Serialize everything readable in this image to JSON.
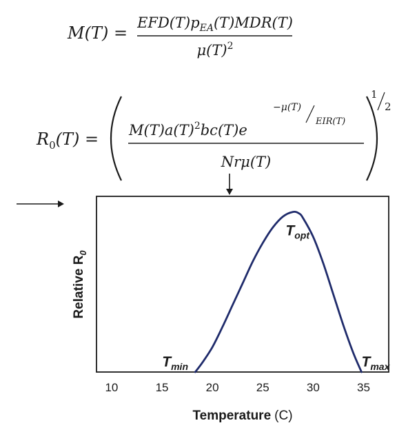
{
  "equation_m": {
    "lhs": "M(T) =",
    "numerator": "EFD(T)p_EA(T)MDR(T)",
    "denominator": "μ(T)²"
  },
  "equation_r0": {
    "lhs": "R₀(T) =",
    "numerator_main": "M(T)a(T)²bc(T)e",
    "exponent_num": "−μ(T)",
    "exponent_den": "EIR(T)",
    "denominator": "Nrμ(T)",
    "outer_exponent": "1/2"
  },
  "chart_data": {
    "type": "line",
    "xlabel": "Temperature",
    "xlabel_unit": "(C)",
    "ylabel": "Relative R0",
    "xticks": [
      10,
      15,
      20,
      25,
      30,
      35
    ],
    "xlim": [
      8.5,
      37.5
    ],
    "ylim": [
      0,
      1.13
    ],
    "grid": false,
    "series": [
      {
        "x": [
          18.3,
          19,
          20,
          21,
          22,
          23,
          24,
          25,
          26,
          27,
          28,
          28.6,
          29,
          30,
          31,
          32,
          33,
          34,
          34.8
        ],
        "y": [
          0.0,
          0.06,
          0.16,
          0.29,
          0.43,
          0.57,
          0.71,
          0.83,
          0.93,
          1.0,
          1.03,
          1.02,
          0.99,
          0.87,
          0.7,
          0.5,
          0.3,
          0.12,
          0.0
        ]
      }
    ],
    "annotations": [
      {
        "text": "T",
        "subscript": "min",
        "x": 18.3,
        "y": 0.0
      },
      {
        "text": "T",
        "subscript": "opt",
        "x": 28.5,
        "y": 1.03
      },
      {
        "text": "T",
        "subscript": "max",
        "x": 34.8,
        "y": 0.0
      }
    ],
    "line_color": "#1f2b6b"
  }
}
